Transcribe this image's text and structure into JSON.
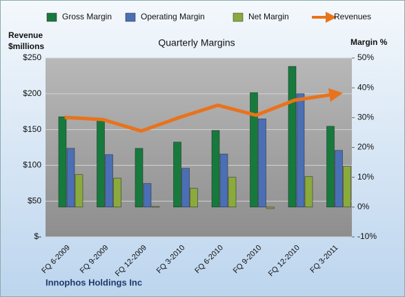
{
  "chart_data": {
    "type": "bar",
    "title": "Quarterly Margins",
    "y_label": [
      "Revenue",
      "$millions"
    ],
    "y2_label": "Margin %",
    "footer": "Innophos Holdings Inc",
    "categories": [
      "FQ 6-2009",
      "FQ 9-2009",
      "FQ 12-2009",
      "FQ 3-2010",
      "FQ 6-2010",
      "FQ 9-2010",
      "FQ 12-2010",
      "FQ 3-2011"
    ],
    "series": [
      {
        "name": "Gross Margin",
        "color": "#167a3c",
        "type": "bar",
        "axis": "y2",
        "values": [
          30.3,
          28.9,
          19.7,
          21.8,
          25.7,
          38.4,
          47.2,
          27.1
        ]
      },
      {
        "name": "Operating Margin",
        "color": "#4a6fb5",
        "type": "bar",
        "axis": "y2",
        "values": [
          19.7,
          17.6,
          7.9,
          13.0,
          17.8,
          29.6,
          38.0,
          19.0
        ]
      },
      {
        "name": "Net Margin",
        "color": "#8aaa3c",
        "type": "bar",
        "axis": "y2",
        "values": [
          10.9,
          9.7,
          0.2,
          6.3,
          10.0,
          -0.5,
          10.2,
          13.7
        ]
      },
      {
        "name": "Revenues",
        "color": "#e8731c",
        "type": "line",
        "axis": "y",
        "values": [
          167,
          164,
          148,
          167,
          184,
          170,
          191,
          199
        ]
      }
    ],
    "ylim": [
      0,
      250
    ],
    "yticks": [
      {
        "value": 0,
        "label": "$-"
      },
      {
        "value": 50,
        "label": "$50"
      },
      {
        "value": 100,
        "label": "$100"
      },
      {
        "value": 150,
        "label": "$150"
      },
      {
        "value": 200,
        "label": "$200"
      },
      {
        "value": 250,
        "label": "$250"
      }
    ],
    "y2lim": [
      -10,
      50
    ],
    "y2ticks": [
      {
        "value": -10,
        "label": "-10%"
      },
      {
        "value": 0,
        "label": "0%"
      },
      {
        "value": 10,
        "label": "10%"
      },
      {
        "value": 20,
        "label": "20%"
      },
      {
        "value": 30,
        "label": "30%"
      },
      {
        "value": 40,
        "label": "40%"
      },
      {
        "value": 50,
        "label": "50%"
      }
    ],
    "grid": true,
    "legend": "top"
  }
}
